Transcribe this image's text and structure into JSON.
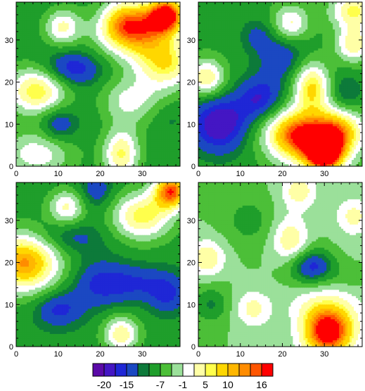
{
  "chart_data": {
    "type": "heatmap",
    "grid": false,
    "xticks": [
      0,
      10,
      20,
      30
    ],
    "yticks": [
      0,
      10,
      20,
      30
    ],
    "xlim": [
      0,
      39
    ],
    "ylim": [
      0,
      39
    ],
    "palette": [
      "#5b0aa8",
      "#4416c4",
      "#1f27d6",
      "#1b48c2",
      "#0d7a3a",
      "#1f9e2b",
      "#4cbf38",
      "#9be09a",
      "#ffffff",
      "#ffffa6",
      "#ffff4c",
      "#ffd700",
      "#ffb700",
      "#ff8c00",
      "#ff5500",
      "#ff0000"
    ],
    "colorbar": {
      "tick_labels": [
        "-20",
        "-15",
        "-7",
        "-1",
        "5",
        "10",
        "16"
      ],
      "levels": [
        -22,
        -20,
        -17,
        -15,
        -12,
        -10,
        -7,
        -4,
        -1,
        2,
        5,
        7,
        10,
        12,
        14,
        16,
        18
      ]
    },
    "panels": [
      {
        "position": "top-left",
        "base": -9,
        "features": [
          {
            "x": 36,
            "y": 36,
            "value": 17,
            "sx": 3,
            "sy": 3
          },
          {
            "x": 30,
            "y": 32,
            "value": 9,
            "sx": 6,
            "sy": 5
          },
          {
            "x": 25,
            "y": 34,
            "value": 6,
            "sx": 5,
            "sy": 4
          },
          {
            "x": 5,
            "y": 18,
            "value": 9,
            "sx": 5,
            "sy": 4
          },
          {
            "x": 11,
            "y": 33,
            "value": 4,
            "sx": 3,
            "sy": 3
          },
          {
            "x": 25,
            "y": 3,
            "value": 7,
            "sx": 3,
            "sy": 4
          },
          {
            "x": 36,
            "y": 24,
            "value": 6,
            "sx": 5,
            "sy": 4
          },
          {
            "x": 27,
            "y": 15,
            "value": 3,
            "sx": 6,
            "sy": 4
          },
          {
            "x": 5,
            "y": 3,
            "value": 2,
            "sx": 6,
            "sy": 4
          },
          {
            "x": 13,
            "y": 23,
            "value": -19,
            "sx": 5,
            "sy": 3
          },
          {
            "x": 10,
            "y": 10,
            "value": -17,
            "sx": 3,
            "sy": 3
          },
          {
            "x": 20,
            "y": 14,
            "value": -12,
            "sx": 4,
            "sy": 4
          },
          {
            "x": 30,
            "y": 13,
            "value": -11,
            "sx": 4,
            "sy": 3
          },
          {
            "x": 36,
            "y": 12,
            "value": -12,
            "sx": 3,
            "sy": 3
          },
          {
            "x": 20,
            "y": 36,
            "value": -12,
            "sx": 3,
            "sy": 3
          }
        ]
      },
      {
        "position": "top-right",
        "base": -8,
        "features": [
          {
            "x": 30,
            "y": 3,
            "value": 18,
            "sx": 3,
            "sy": 3
          },
          {
            "x": 28,
            "y": 6,
            "value": 10,
            "sx": 6,
            "sy": 5
          },
          {
            "x": 22,
            "y": 8,
            "value": 8,
            "sx": 5,
            "sy": 4
          },
          {
            "x": 34,
            "y": 9,
            "value": 7,
            "sx": 4,
            "sy": 4
          },
          {
            "x": 27,
            "y": 19,
            "value": 9,
            "sx": 3,
            "sy": 4
          },
          {
            "x": 2,
            "y": 21,
            "value": 7,
            "sx": 3,
            "sy": 3
          },
          {
            "x": 37,
            "y": 37,
            "value": 7,
            "sx": 4,
            "sy": 3
          },
          {
            "x": 37,
            "y": 29,
            "value": 6,
            "sx": 3,
            "sy": 3
          },
          {
            "x": 22,
            "y": 34,
            "value": 4,
            "sx": 3,
            "sy": 3
          },
          {
            "x": 5,
            "y": 10,
            "value": -21,
            "sx": 5,
            "sy": 5
          },
          {
            "x": 15,
            "y": 16,
            "value": -18,
            "sx": 4,
            "sy": 4
          },
          {
            "x": 20,
            "y": 26,
            "value": -15,
            "sx": 4,
            "sy": 4
          },
          {
            "x": 14,
            "y": 31,
            "value": -13,
            "sx": 3,
            "sy": 3
          },
          {
            "x": 35,
            "y": 16,
            "value": -15,
            "sx": 3,
            "sy": 4
          }
        ]
      },
      {
        "position": "bottom-left",
        "base": -9,
        "features": [
          {
            "x": 37,
            "y": 37,
            "value": 17,
            "sx": 3,
            "sy": 3
          },
          {
            "x": 30,
            "y": 31,
            "value": 8,
            "sx": 5,
            "sy": 4
          },
          {
            "x": 2,
            "y": 20,
            "value": 15,
            "sx": 6,
            "sy": 5
          },
          {
            "x": 12,
            "y": 33,
            "value": 4,
            "sx": 3,
            "sy": 3
          },
          {
            "x": 25,
            "y": 3,
            "value": 6,
            "sx": 3,
            "sy": 3
          },
          {
            "x": 12,
            "y": 26,
            "value": -15,
            "sx": 6,
            "sy": 3
          },
          {
            "x": 20,
            "y": 15,
            "value": -16,
            "sx": 5,
            "sy": 4
          },
          {
            "x": 30,
            "y": 15,
            "value": -15,
            "sx": 6,
            "sy": 3
          },
          {
            "x": 36,
            "y": 12,
            "value": -15,
            "sx": 3,
            "sy": 3
          },
          {
            "x": 10,
            "y": 9,
            "value": -17,
            "sx": 4,
            "sy": 3
          },
          {
            "x": 19,
            "y": 37,
            "value": -15,
            "sx": 3,
            "sy": 3
          }
        ]
      },
      {
        "position": "bottom-right",
        "base": -4,
        "features": [
          {
            "x": 31,
            "y": 3,
            "value": 16,
            "sx": 4,
            "sy": 4
          },
          {
            "x": 30,
            "y": 7,
            "value": 6,
            "sx": 6,
            "sy": 5
          },
          {
            "x": 2,
            "y": 21,
            "value": 6,
            "sx": 3,
            "sy": 3
          },
          {
            "x": 22,
            "y": 25,
            "value": 6,
            "sx": 3,
            "sy": 4
          },
          {
            "x": 24,
            "y": 37,
            "value": 5,
            "sx": 3,
            "sy": 3
          },
          {
            "x": 13,
            "y": 9,
            "value": 4,
            "sx": 3,
            "sy": 3
          },
          {
            "x": 37,
            "y": 31,
            "value": 4,
            "sx": 3,
            "sy": 3
          },
          {
            "x": 27,
            "y": 19,
            "value": -18,
            "sx": 4,
            "sy": 3
          },
          {
            "x": 36,
            "y": 16,
            "value": -6,
            "sx": 3,
            "sy": 2
          },
          {
            "x": 3,
            "y": 10,
            "value": -11,
            "sx": 3,
            "sy": 3
          },
          {
            "x": 12,
            "y": 30,
            "value": -9,
            "sx": 4,
            "sy": 4
          },
          {
            "x": 10,
            "y": 38,
            "value": -4,
            "sx": 4,
            "sy": 3
          },
          {
            "x": 23,
            "y": 5,
            "value": -6,
            "sx": 3,
            "sy": 3
          },
          {
            "x": 35,
            "y": 24,
            "value": -3,
            "sx": 3,
            "sy": 3
          }
        ]
      }
    ]
  }
}
